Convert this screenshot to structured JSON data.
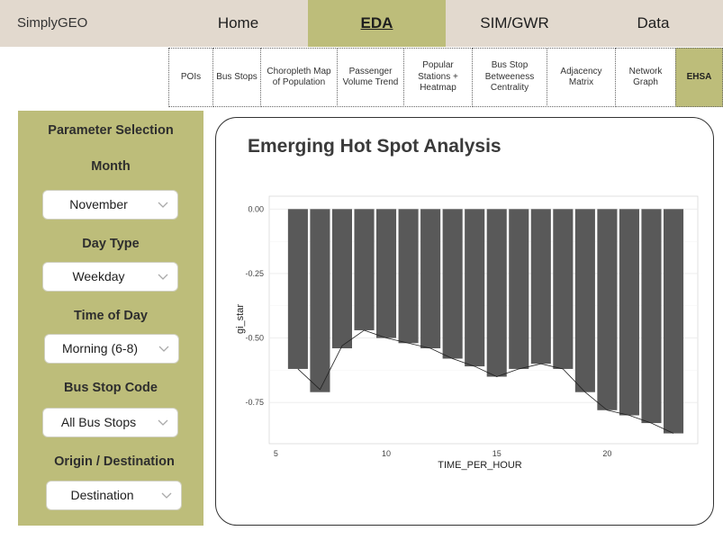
{
  "brand": "SimplyGEO",
  "nav": [
    {
      "label": "Home",
      "active": false
    },
    {
      "label": "EDA",
      "active": true
    },
    {
      "label": "SIM/GWR",
      "active": false
    },
    {
      "label": "Data",
      "active": false
    }
  ],
  "subtabs": [
    {
      "label": "POIs",
      "active": false
    },
    {
      "label": "Bus Stops",
      "active": false
    },
    {
      "label": "Choropleth Map of Population",
      "active": false
    },
    {
      "label": "Passenger Volume Trend",
      "active": false
    },
    {
      "label": "Popular Stations + Heatmap",
      "active": false
    },
    {
      "label": "Bus Stop Betweeness Centrality",
      "active": false
    },
    {
      "label": "Adjacency Matrix",
      "active": false
    },
    {
      "label": "Network Graph",
      "active": false
    },
    {
      "label": "EHSA",
      "active": true
    }
  ],
  "sidebar": {
    "title": "Parameter Selection",
    "month_label": "Month",
    "month_value": "November",
    "daytype_label": "Day Type",
    "daytype_value": "Weekday",
    "time_label": "Time of Day",
    "time_value": "Morning (6-8)",
    "busstop_label": "Bus Stop Code",
    "busstop_value": "All Bus Stops",
    "od_label": "Origin / Destination",
    "od_value": "Destination"
  },
  "panel": {
    "title": "Emerging Hot Spot Analysis"
  },
  "chart_data": {
    "type": "bar",
    "xlabel": "TIME_PER_HOUR",
    "ylabel": "gi_star",
    "x": [
      6,
      7,
      8,
      9,
      10,
      11,
      12,
      13,
      14,
      15,
      16,
      17,
      18,
      19,
      20,
      21,
      22,
      23
    ],
    "values": [
      -0.62,
      -0.71,
      -0.54,
      -0.47,
      -0.5,
      -0.52,
      -0.54,
      -0.58,
      -0.61,
      -0.65,
      -0.62,
      -0.6,
      -0.62,
      -0.71,
      -0.78,
      -0.8,
      -0.83,
      -0.87
    ],
    "line_values": [
      -0.62,
      -0.7,
      -0.53,
      -0.47,
      -0.5,
      -0.52,
      -0.54,
      -0.58,
      -0.61,
      -0.65,
      -0.62,
      -0.6,
      -0.62,
      -0.71,
      -0.78,
      -0.8,
      -0.83,
      -0.87
    ],
    "xticks": [
      5,
      10,
      15,
      20
    ],
    "yticks": [
      0.0,
      -0.25,
      -0.5,
      -0.75
    ],
    "ytick_labels": [
      "0.00",
      "-0.25",
      "-0.50",
      "-0.75"
    ],
    "xlim": [
      4.7,
      24.1
    ],
    "ylim": [
      -0.91,
      0.05
    ],
    "bar_color": "#595959",
    "grid": true
  }
}
